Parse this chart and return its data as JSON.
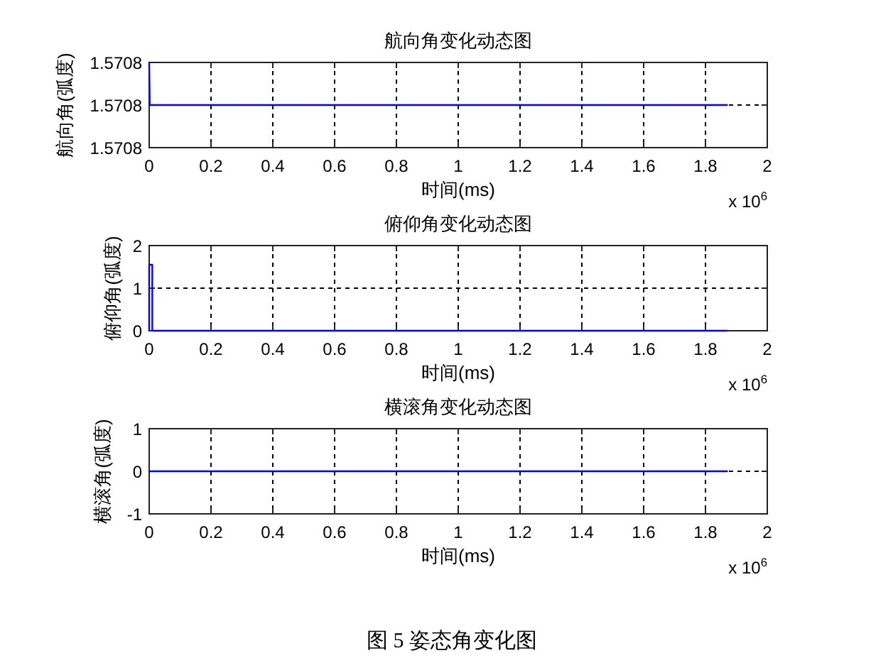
{
  "chart_data": [
    {
      "type": "line",
      "title": "航向角变化动态图",
      "xlabel": "时间(ms)",
      "ylabel": "航向角(弧度)",
      "x": [
        0,
        0.002,
        1.87
      ],
      "series": [
        {
          "color": "#0000ff",
          "values": [
            1.570797,
            1.570796,
            1.570796
          ]
        }
      ],
      "xlim": [
        0,
        2
      ],
      "xticks": [
        0,
        0.2,
        0.4,
        0.6,
        0.8,
        1,
        1.2,
        1.4,
        1.6,
        1.8,
        2
      ],
      "ylim": [
        1.570795,
        1.570797
      ],
      "yticks": [
        {
          "value": 1.570795,
          "label": "1.5708"
        },
        {
          "value": 1.570796,
          "label": "1.5708"
        },
        {
          "value": 1.570797,
          "label": "1.5708"
        }
      ],
      "grid": true,
      "annotations": [
        "x 10$^{6}$"
      ]
    },
    {
      "type": "line",
      "title": "俯仰角变化动态图",
      "xlabel": "时间(ms)",
      "ylabel": "俯仰角(弧度)",
      "x": [
        0,
        0,
        0.01,
        0.01,
        1.87
      ],
      "series": [
        {
          "color": "#0000ff",
          "values": [
            0,
            1.55,
            1.55,
            0,
            0
          ]
        }
      ],
      "xlim": [
        0,
        2
      ],
      "xticks": [
        0,
        0.2,
        0.4,
        0.6,
        0.8,
        1,
        1.2,
        1.4,
        1.6,
        1.8,
        2
      ],
      "ylim": [
        0,
        2
      ],
      "yticks": [
        0,
        1,
        2
      ],
      "grid": true,
      "annotations": [
        "x 10$^{6}$"
      ]
    },
    {
      "type": "line",
      "title": "横滚角变化动态图",
      "xlabel": "时间(ms)",
      "ylabel": "横滚角(弧度)",
      "x": [
        0,
        1.87
      ],
      "series": [
        {
          "color": "#0000ff",
          "values": [
            0,
            0
          ]
        }
      ],
      "xlim": [
        0,
        2
      ],
      "xticks": [
        0,
        0.2,
        0.4,
        0.6,
        0.8,
        1,
        1.2,
        1.4,
        1.6,
        1.8,
        2
      ],
      "ylim": [
        -1,
        1
      ],
      "yticks": [
        -1,
        0,
        1
      ],
      "grid": true,
      "annotations": [
        "x 10$^{6}$",
        "图 5 姿态角变化图"
      ]
    }
  ]
}
